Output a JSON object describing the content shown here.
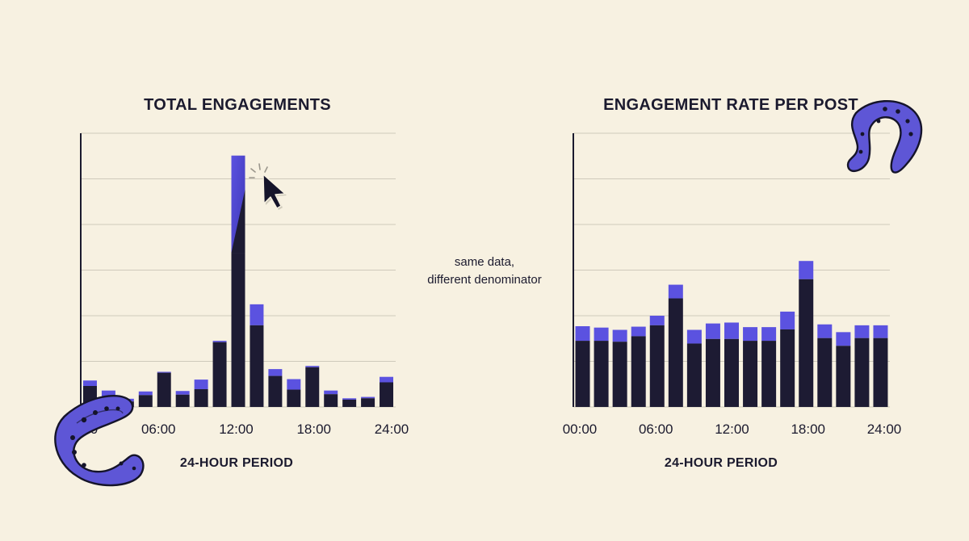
{
  "colors": {
    "background": "#f7f1e1",
    "bar_base": "#1d1b33",
    "bar_highlight": "#5b52e0",
    "tentacle": "#5e56d6",
    "ink": "#1b1a2e"
  },
  "annotation": {
    "line1": "same data,",
    "line2": "different denominator"
  },
  "icons": [
    "cursor-arrow-icon",
    "click-sparkle-icon",
    "tentacle-icon"
  ],
  "chart_data": [
    {
      "type": "bar",
      "stacked": true,
      "title": "TOTAL ENGAGEMENTS",
      "xlabel": "24-HOUR PERIOD",
      "ylabel": "",
      "xticks": [
        "00:00",
        "06:00",
        "12:00",
        "18:00",
        "24:00"
      ],
      "bins": 17,
      "grid": true,
      "series": [
        {
          "values": [
            4.6,
            2.1,
            1.2,
            2.6,
            7.5,
            2.7,
            3.9,
            14.2,
            33.8,
            17.9,
            6.8,
            3.8,
            8.7,
            2.8,
            1.6,
            1.9,
            5.4
          ]
        },
        {
          "values": [
            1.2,
            1.5,
            0.6,
            0.8,
            0.2,
            0.8,
            2.1,
            0.3,
            21.3,
            4.6,
            1.5,
            2.3,
            0.3,
            0.8,
            0.3,
            0.3,
            1.2
          ]
        }
      ],
      "ylim": [
        0,
        60
      ]
    },
    {
      "type": "bar",
      "stacked": true,
      "title": "ENGAGEMENT RATE PER POST",
      "xlabel": "24-HOUR PERIOD",
      "ylabel": "",
      "xticks": [
        "00:00",
        "06:00",
        "12:00",
        "18:00",
        "24:00"
      ],
      "bins": 17,
      "grid": true,
      "series": [
        {
          "values": [
            14.5,
            14.5,
            14.3,
            15.5,
            17.9,
            23.8,
            13.9,
            14.9,
            14.9,
            14.5,
            14.5,
            17.0,
            28.0,
            15.1,
            13.4,
            15.1,
            15.1
          ]
        },
        {
          "values": [
            3.2,
            2.9,
            2.6,
            2.1,
            2.1,
            3.0,
            3.0,
            3.4,
            3.6,
            3.0,
            3.0,
            3.9,
            4.0,
            3.0,
            3.0,
            2.8,
            2.8
          ]
        }
      ],
      "ylim": [
        0,
        60
      ]
    }
  ]
}
